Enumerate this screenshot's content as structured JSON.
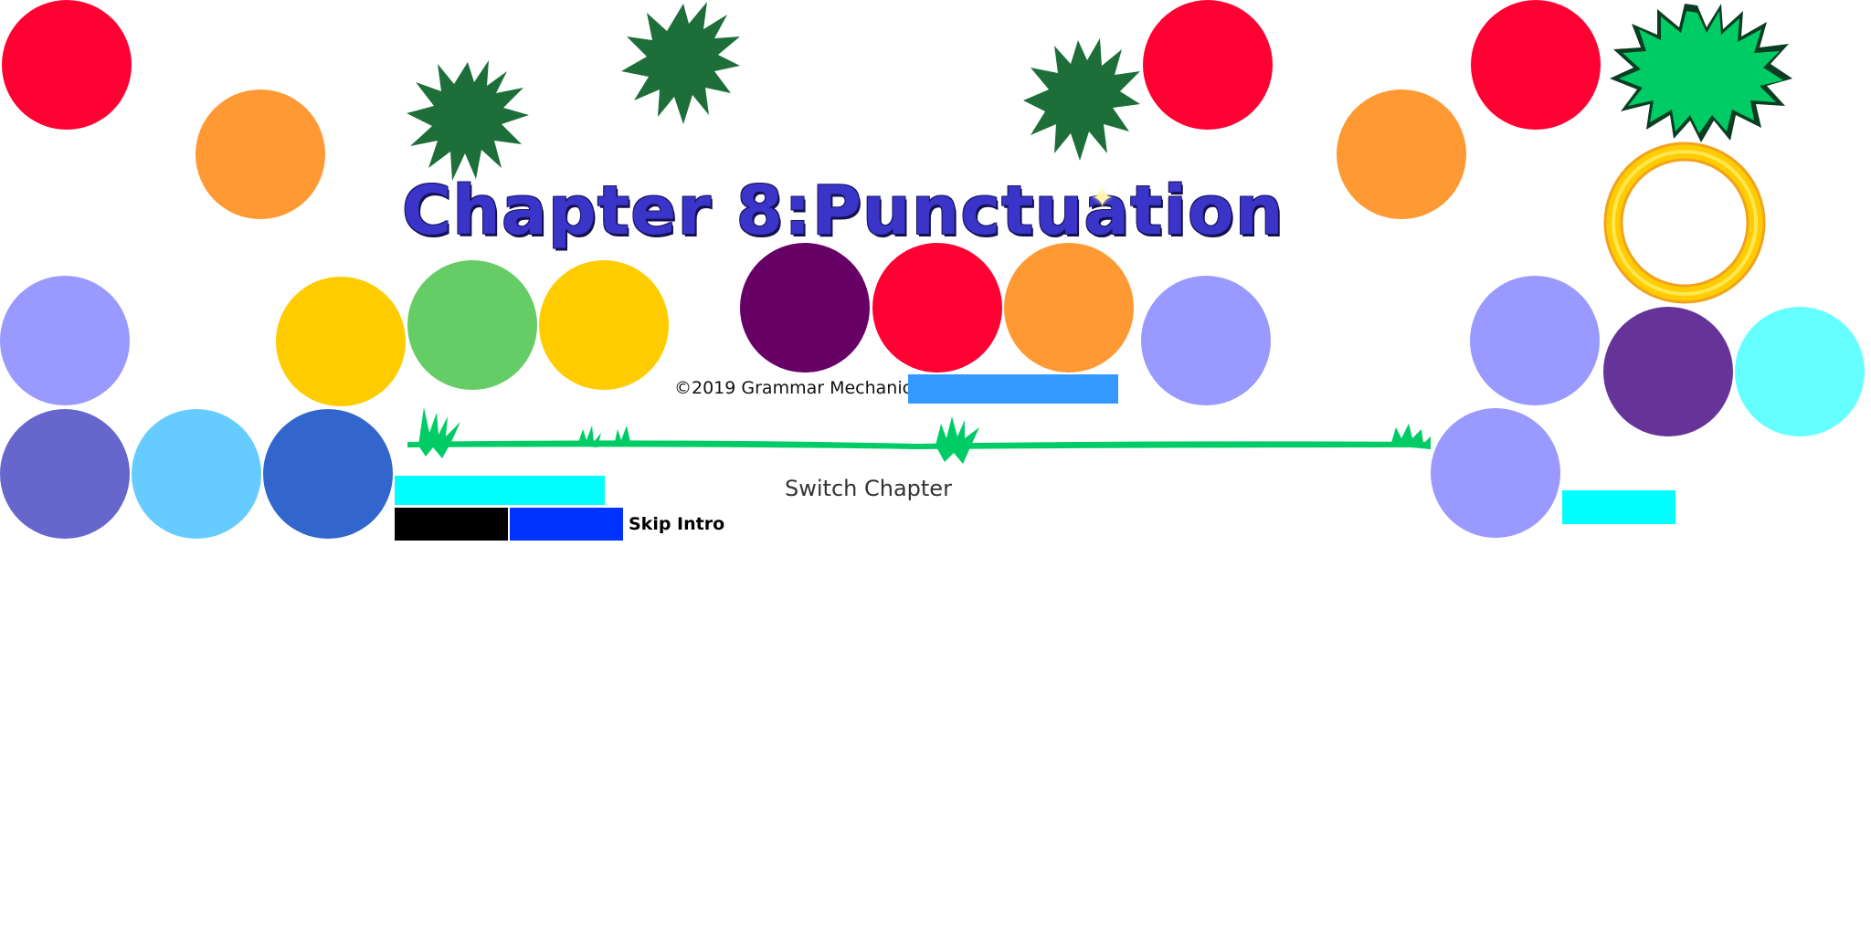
{
  "title": "Chapter 8:Punctuation",
  "copyright": "©2019 Grammar Mechanics™",
  "switch_chapter_label": "Switch Chapter",
  "skip_intro_label": "Skip Intro",
  "sparkle_glyph": "✦",
  "colors": {
    "red": "#ff0033",
    "orange": "#ff9933",
    "lavender": "#9999ff",
    "yellow": "#ffcc00",
    "green": "#66cc66",
    "plum": "#660066",
    "slate-blue": "#6666cc",
    "sky": "#66ccff",
    "royal-blue": "#3366cc",
    "purple": "#663399",
    "cyan": "#66ffff",
    "bright-cyan": "#00ffff",
    "button-blue": "#3399ff",
    "deep-blue": "#0033ff",
    "black": "#000000",
    "dark-foliage": "#1e6e3a",
    "bright-foliage": "#00cc66",
    "title-blue": "#3a35c8",
    "ring-gold": "#ffcc00"
  }
}
